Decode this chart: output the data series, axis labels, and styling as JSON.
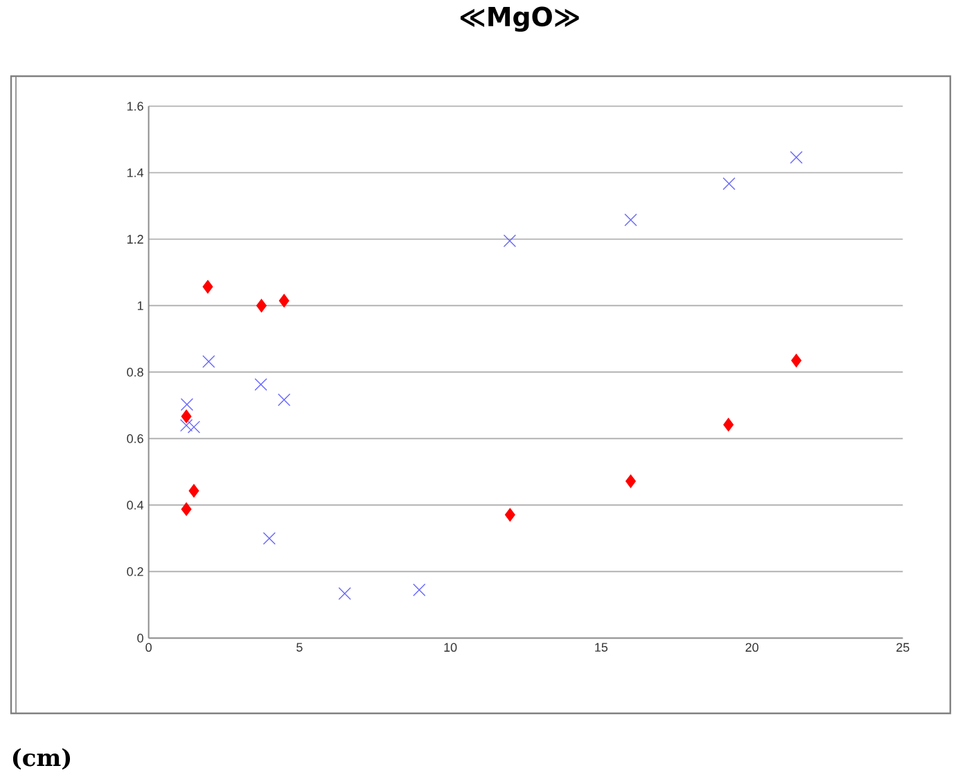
{
  "chart_data": {
    "type": "scatter",
    "title": "≪MgO≫",
    "xlabel": "(cm)",
    "xlim": [
      0,
      25
    ],
    "xticks": [
      0,
      5,
      10,
      15,
      20,
      25
    ],
    "ylim": [
      0,
      1.6
    ],
    "yticks": [
      0,
      0.2,
      0.4,
      0.6,
      0.8,
      1,
      1.2,
      1.4,
      1.6
    ],
    "grid": "y",
    "series": [
      {
        "color": "#ff0000",
        "marker": "diamond",
        "x": [
          1.96,
          3.74,
          4.49,
          1.25,
          1.5,
          1.25,
          11.98,
          15.98,
          19.22,
          21.47
        ],
        "values": [
          1.057,
          1.0,
          1.015,
          0.667,
          0.443,
          0.388,
          0.371,
          0.472,
          0.642,
          0.835
        ]
      },
      {
        "color": "#6666ff",
        "marker": "cross",
        "x": [
          1.99,
          3.72,
          4.49,
          1.27,
          1.25,
          1.5,
          4.0,
          6.5,
          8.97,
          11.97,
          15.98,
          19.24,
          21.47
        ],
        "values": [
          0.832,
          0.763,
          0.717,
          0.703,
          0.64,
          0.635,
          0.3,
          0.134,
          0.145,
          1.195,
          1.258,
          1.367,
          1.446
        ]
      }
    ]
  }
}
